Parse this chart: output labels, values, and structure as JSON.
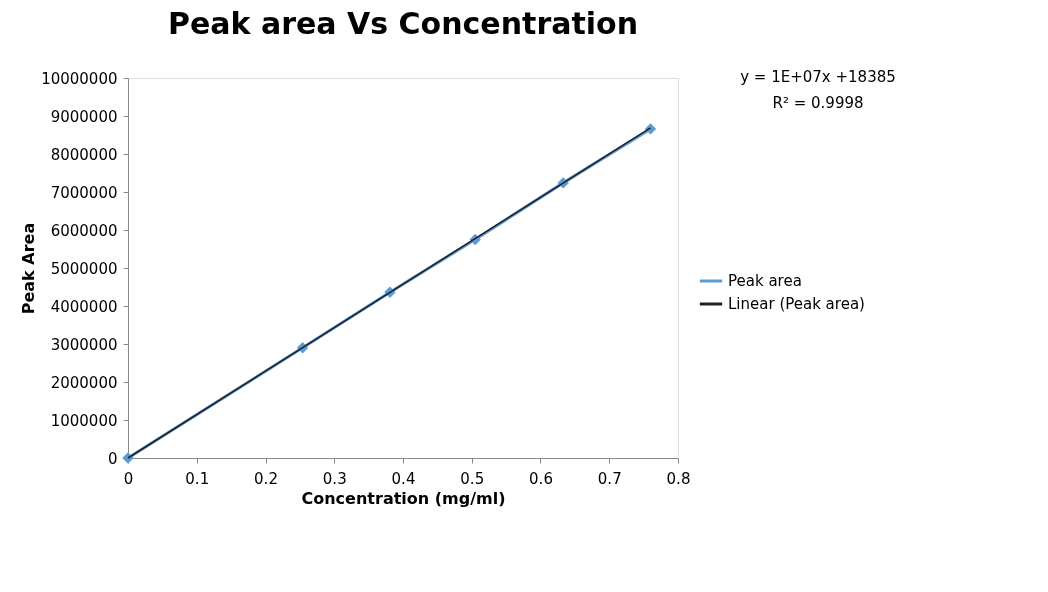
{
  "chart_data": {
    "type": "line",
    "title": "Peak area Vs Concentration",
    "xlabel": "Concentration  (mg/ml)",
    "ylabel": "Peak Area",
    "series": [
      {
        "name": "Peak area",
        "color": "#5b9bd5",
        "marker": "diamond",
        "x": [
          0,
          0.254,
          0.381,
          0.505,
          0.633,
          0.76
        ],
        "values": [
          0,
          2900000,
          4360000,
          5750000,
          7240000,
          8660000
        ]
      },
      {
        "name": "Linear (Peak area)",
        "color": "#1f1f1f",
        "marker": "none",
        "x": [
          0,
          0.76
        ],
        "values": [
          0,
          8690000
        ]
      }
    ],
    "xlim": [
      0,
      0.8
    ],
    "xticks": [
      0,
      0.1,
      0.2,
      0.3,
      0.4,
      0.5,
      0.6,
      0.7,
      0.8
    ],
    "ylim": [
      0,
      10000000
    ],
    "yticks": [
      0,
      1000000,
      2000000,
      3000000,
      4000000,
      5000000,
      6000000,
      7000000,
      8000000,
      9000000,
      10000000
    ],
    "grid": false,
    "legend": "right",
    "annotations": [
      "y = 1E+07x +18385",
      "R² = 0.9998"
    ]
  }
}
